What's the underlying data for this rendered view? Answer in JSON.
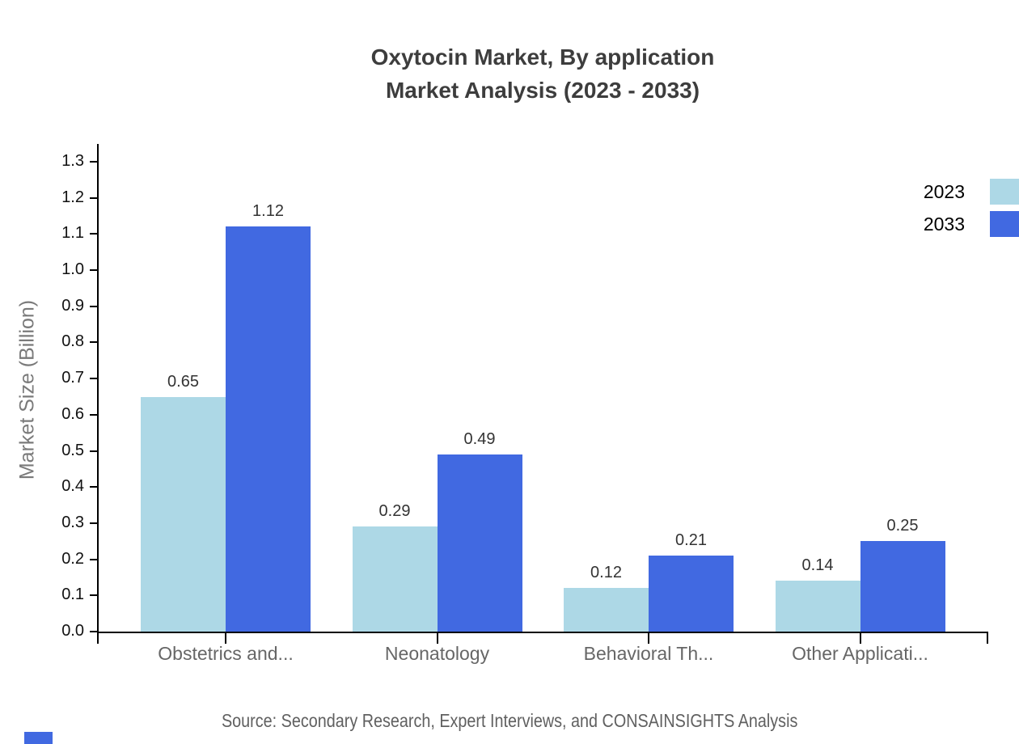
{
  "title": {
    "line1": "Oxytocin Market, By application",
    "line2": "Market Analysis (2023 - 2033)"
  },
  "source_text": "Source: Secondary Research, Expert Interviews, and CONSAINSIGHTS Analysis",
  "colors": {
    "series_2023": "#ADD8E6",
    "series_2033": "#4169E1",
    "title_text": "#3D3D3D",
    "tick_text": "#111111",
    "value_label_text": "#333333",
    "category_text": "#666666",
    "y_axis_title_text": "#7A7A7A",
    "source_text": "#606060",
    "axis_line": "#000000",
    "background": "#FFFFFF"
  },
  "chart_data": {
    "type": "bar",
    "title": "Oxytocin Market, By application Market Analysis (2023 - 2033)",
    "categories": [
      "Obstetrics and...",
      "Neonatology",
      "Behavioral Th...",
      "Other Applicati..."
    ],
    "series": [
      {
        "name": "2023",
        "color": "#ADD8E6",
        "values": [
          0.65,
          0.29,
          0.12,
          0.14
        ]
      },
      {
        "name": "2033",
        "color": "#4169E1",
        "values": [
          1.12,
          0.49,
          0.21,
          0.25
        ]
      }
    ],
    "xlabel": "",
    "ylabel": "Market Size (Billion)",
    "ylim": [
      0.0,
      1.3
    ],
    "ytick_step": 0.1,
    "ytick_labels": [
      "0.0",
      "0.1",
      "0.2",
      "0.3",
      "0.4",
      "0.5",
      "0.6",
      "0.7",
      "0.8",
      "0.9",
      "1.0",
      "1.1",
      "1.2",
      "1.3"
    ],
    "bar_value_labels": [
      0.65,
      1.12,
      0.29,
      0.49,
      0.12,
      0.21,
      0.14,
      0.25
    ],
    "legend": {
      "position": "top-right",
      "entries": [
        "2023",
        "2033"
      ],
      "swatches_clipped_at_right_edge": true
    },
    "grid": false
  }
}
